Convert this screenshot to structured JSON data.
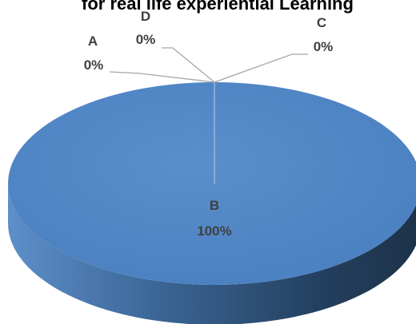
{
  "chart_data": {
    "type": "pie",
    "title": "for real life experiential Learning",
    "categories": [
      "A",
      "B",
      "C",
      "D"
    ],
    "values": [
      0,
      100,
      0,
      0
    ],
    "percent_labels": [
      "0%",
      "100%",
      "0%",
      "0%"
    ],
    "legend": "none",
    "style": "3d"
  },
  "colors": {
    "slice_fill": "#4f81bd",
    "slice_top_highlight": "#5a8fcc",
    "side_dark": "#1f3550",
    "side_light": "#4d7cb0",
    "leader_line": "#a6a6a6",
    "label_text": "#404040"
  }
}
